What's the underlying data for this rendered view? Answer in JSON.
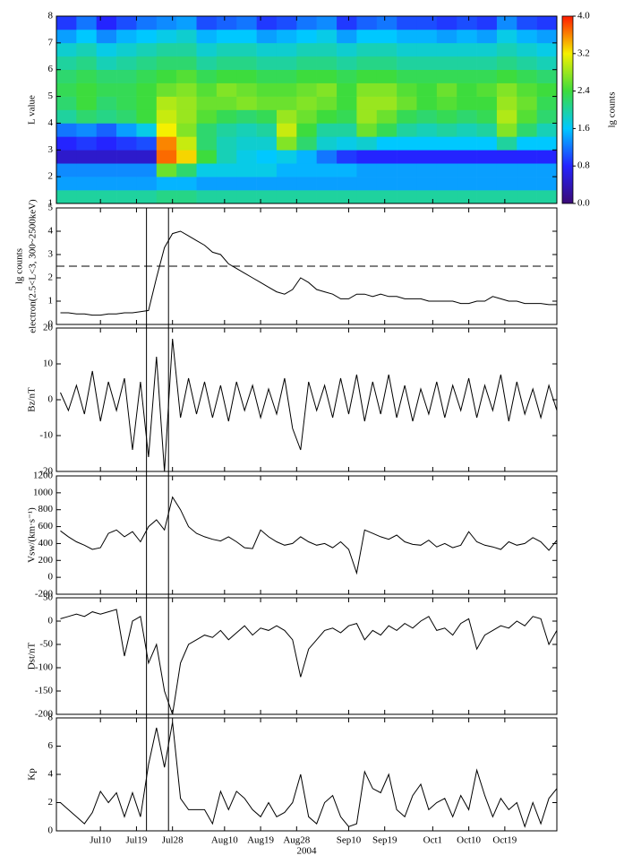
{
  "chart_data": {
    "type": "stacked-panels",
    "xlabel": "2004",
    "xlim": [
      -1,
      124
    ],
    "xticks": [
      {
        "value": 10,
        "label": "Jul10"
      },
      {
        "value": 19,
        "label": "Jul19"
      },
      {
        "value": 28,
        "label": "Jul28"
      },
      {
        "value": 41,
        "label": "Aug10"
      },
      {
        "value": 50,
        "label": "Aug19"
      },
      {
        "value": 59,
        "label": "Aug28"
      },
      {
        "value": 72,
        "label": "Sep10"
      },
      {
        "value": 81,
        "label": "Sep19"
      },
      {
        "value": 93,
        "label": "Oct1"
      },
      {
        "value": 102,
        "label": "Oct10"
      },
      {
        "value": 111,
        "label": "Oct19"
      }
    ],
    "event_lines": [
      21.5,
      27
    ],
    "x": [
      0,
      2,
      4,
      6,
      8,
      10,
      12,
      14,
      16,
      18,
      20,
      22,
      24,
      26,
      28,
      30,
      32,
      34,
      36,
      38,
      40,
      42,
      44,
      46,
      48,
      50,
      52,
      54,
      56,
      58,
      60,
      62,
      64,
      66,
      68,
      70,
      72,
      74,
      76,
      78,
      80,
      82,
      84,
      86,
      88,
      90,
      92,
      94,
      96,
      98,
      100,
      102,
      104,
      106,
      108,
      110,
      112,
      114,
      116,
      118,
      120,
      122,
      124
    ],
    "panels": [
      {
        "type": "heatmap",
        "ylabel": "L value",
        "ylim": [
          1,
          8
        ],
        "yticks": [
          1,
          2,
          3,
          4,
          5,
          6,
          7,
          8
        ],
        "colorbar_label": "lg counts",
        "clim": [
          0,
          4
        ],
        "cticks": [
          {
            "value": 0,
            "label": "0.0"
          },
          {
            "value": 0.8,
            "label": "0.8"
          },
          {
            "value": 1.6,
            "label": "1.6"
          },
          {
            "value": 2.4,
            "label": "2.4"
          },
          {
            "value": 3.2,
            "label": "3.2"
          },
          {
            "value": 4,
            "label": "4.0"
          }
        ],
        "colorscale": [
          "#3b0a75",
          "#2424ff",
          "#00c8ff",
          "#3ddc3d",
          "#f5f000",
          "#ff1a00"
        ],
        "x": [
          1.5,
          6.5,
          11.5,
          16.5,
          21.5,
          26.5,
          31.5,
          36.5,
          41.5,
          46.5,
          51.5,
          56.5,
          61.5,
          66.5,
          71.5,
          76.5,
          81.5,
          86.5,
          91.5,
          96.5,
          101.5,
          106.5,
          111.5,
          116.5,
          121.5
        ],
        "y": [
          1.25,
          1.75,
          2.25,
          2.75,
          3.25,
          3.75,
          4.25,
          4.75,
          5.25,
          5.75,
          6.25,
          6.75,
          7.25,
          7.75
        ],
        "z": [
          [
            2.0,
            2.0,
            2.0,
            2.0,
            2.0,
            2.1,
            2.1,
            2.0,
            2.0,
            2.0,
            2.0,
            2.0,
            2.0,
            2.0,
            2.0,
            2.0,
            2.0,
            2.0,
            2.0,
            2.0,
            2.0,
            2.0,
            2.0,
            2.0,
            2.0
          ],
          [
            1.4,
            1.4,
            1.4,
            1.4,
            1.4,
            1.5,
            1.5,
            1.4,
            1.4,
            1.4,
            1.4,
            1.4,
            1.4,
            1.4,
            1.4,
            1.4,
            1.4,
            1.4,
            1.4,
            1.4,
            1.4,
            1.4,
            1.4,
            1.4,
            1.4
          ],
          [
            1.3,
            1.3,
            1.3,
            1.3,
            1.3,
            2.6,
            2.2,
            1.7,
            1.7,
            1.7,
            1.7,
            1.5,
            1.5,
            1.5,
            1.5,
            1.4,
            1.4,
            1.4,
            1.4,
            1.4,
            1.4,
            1.4,
            1.4,
            1.4,
            1.4
          ],
          [
            0.5,
            0.5,
            0.5,
            0.5,
            0.5,
            3.7,
            3.3,
            2.4,
            1.9,
            1.7,
            1.6,
            1.7,
            1.5,
            1.2,
            0.9,
            0.8,
            0.8,
            0.8,
            0.8,
            0.8,
            0.8,
            0.8,
            0.8,
            0.8,
            0.8
          ],
          [
            0.8,
            0.9,
            0.8,
            0.9,
            1.0,
            3.6,
            3.0,
            2.2,
            1.9,
            1.8,
            1.8,
            2.7,
            2.2,
            1.8,
            1.7,
            1.8,
            1.6,
            1.6,
            1.6,
            1.6,
            1.6,
            1.6,
            2.0,
            1.6,
            1.6
          ],
          [
            1.2,
            1.3,
            1.1,
            1.4,
            1.7,
            3.2,
            2.7,
            2.2,
            2.0,
            1.9,
            2.0,
            3.0,
            2.4,
            2.0,
            2.0,
            2.6,
            2.3,
            2.0,
            1.9,
            2.0,
            1.9,
            2.0,
            2.7,
            2.2,
            1.9
          ],
          [
            2.0,
            2.2,
            2.1,
            2.2,
            2.4,
            3.0,
            2.8,
            2.5,
            2.3,
            2.2,
            2.3,
            2.8,
            2.6,
            2.4,
            2.3,
            2.8,
            2.6,
            2.3,
            2.2,
            2.3,
            2.2,
            2.3,
            2.9,
            2.5,
            2.2
          ],
          [
            2.2,
            2.4,
            2.2,
            2.3,
            2.4,
            2.9,
            2.8,
            2.6,
            2.6,
            2.7,
            2.6,
            2.6,
            2.7,
            2.6,
            2.4,
            2.8,
            2.8,
            2.6,
            2.4,
            2.5,
            2.4,
            2.4,
            2.8,
            2.6,
            2.3
          ],
          [
            2.3,
            2.4,
            2.3,
            2.3,
            2.4,
            2.6,
            2.7,
            2.5,
            2.7,
            2.6,
            2.5,
            2.5,
            2.6,
            2.7,
            2.4,
            2.7,
            2.7,
            2.5,
            2.4,
            2.6,
            2.4,
            2.5,
            2.7,
            2.5,
            2.4
          ],
          [
            2.2,
            2.3,
            2.2,
            2.2,
            2.3,
            2.4,
            2.5,
            2.3,
            2.4,
            2.4,
            2.3,
            2.3,
            2.4,
            2.4,
            2.3,
            2.4,
            2.4,
            2.3,
            2.3,
            2.3,
            2.3,
            2.3,
            2.4,
            2.3,
            2.2
          ],
          [
            2.0,
            2.1,
            1.9,
            2.0,
            2.1,
            2.2,
            2.2,
            2.0,
            2.1,
            2.1,
            2.0,
            2.0,
            2.1,
            2.1,
            2.0,
            2.1,
            2.1,
            2.0,
            2.0,
            2.0,
            2.0,
            2.0,
            2.1,
            2.0,
            1.9
          ],
          [
            1.8,
            1.9,
            1.7,
            1.8,
            1.9,
            2.0,
            2.0,
            1.8,
            1.9,
            1.9,
            1.8,
            1.8,
            1.9,
            1.9,
            1.8,
            1.9,
            1.9,
            1.8,
            1.8,
            1.8,
            1.8,
            1.8,
            1.9,
            1.8,
            1.7
          ],
          [
            1.4,
            1.6,
            1.3,
            1.5,
            1.6,
            1.7,
            1.8,
            1.5,
            1.6,
            1.6,
            1.4,
            1.5,
            1.6,
            1.7,
            1.4,
            1.6,
            1.6,
            1.5,
            1.5,
            1.4,
            1.5,
            1.4,
            1.7,
            1.5,
            1.4
          ],
          [
            0.9,
            1.2,
            0.8,
            1.0,
            1.2,
            1.3,
            1.4,
            1.0,
            1.1,
            1.2,
            0.9,
            1.0,
            1.2,
            1.3,
            0.9,
            1.1,
            1.2,
            1.0,
            1.0,
            0.9,
            1.0,
            0.9,
            1.3,
            1.0,
            0.9
          ]
        ]
      },
      {
        "type": "line",
        "ylabel": [
          "lg counts",
          "electron(2.5<L<3, 300~2500keV)"
        ],
        "ylim": [
          0,
          5
        ],
        "yticks": [
          0,
          1,
          2,
          3,
          4,
          5
        ],
        "hline": 2.5,
        "color": "#000000",
        "values": [
          0.5,
          0.5,
          0.45,
          0.45,
          0.4,
          0.4,
          0.45,
          0.45,
          0.5,
          0.5,
          0.55,
          0.6,
          2.0,
          3.3,
          3.9,
          4.0,
          3.8,
          3.6,
          3.4,
          3.1,
          3.0,
          2.6,
          2.4,
          2.2,
          2.0,
          1.8,
          1.6,
          1.4,
          1.3,
          1.5,
          2.0,
          1.8,
          1.5,
          1.4,
          1.3,
          1.1,
          1.1,
          1.3,
          1.3,
          1.2,
          1.3,
          1.2,
          1.2,
          1.1,
          1.1,
          1.1,
          1.0,
          1.0,
          1.0,
          1.0,
          0.9,
          0.9,
          1.0,
          1.0,
          1.2,
          1.1,
          1.0,
          1.0,
          0.9,
          0.9,
          0.9,
          0.85,
          0.85
        ]
      },
      {
        "type": "line",
        "ylabel": "Bz/nT",
        "ylim": [
          -20,
          20
        ],
        "yticks": [
          -20,
          -10,
          0,
          10,
          20
        ],
        "color": "#000000",
        "values": [
          2,
          -3,
          4,
          -4,
          8,
          -6,
          5,
          -3,
          6,
          -14,
          5,
          -16,
          12,
          -20,
          17,
          -5,
          6,
          -4,
          5,
          -5,
          4,
          -6,
          5,
          -3,
          4,
          -5,
          3,
          -4,
          6,
          -8,
          -14,
          5,
          -3,
          4,
          -5,
          6,
          -4,
          7,
          -6,
          5,
          -4,
          7,
          -5,
          4,
          -6,
          3,
          -4,
          5,
          -5,
          4,
          -3,
          6,
          -5,
          4,
          -3,
          7,
          -6,
          5,
          -4,
          3,
          -5,
          4,
          -3
        ]
      },
      {
        "type": "line",
        "ylabel": "Vsw/(km·s⁻¹)",
        "ylim": [
          -200,
          1200
        ],
        "yticks": [
          -200,
          0,
          200,
          400,
          600,
          800,
          1000,
          1200
        ],
        "color": "#000000",
        "values": [
          550,
          480,
          420,
          380,
          330,
          350,
          520,
          560,
          480,
          540,
          420,
          600,
          680,
          560,
          950,
          800,
          600,
          520,
          480,
          450,
          430,
          480,
          420,
          350,
          340,
          560,
          480,
          420,
          380,
          400,
          480,
          420,
          380,
          400,
          350,
          420,
          330,
          50,
          560,
          520,
          480,
          450,
          500,
          420,
          390,
          380,
          440,
          360,
          400,
          350,
          380,
          540,
          420,
          380,
          360,
          330,
          420,
          380,
          400,
          470,
          420,
          320,
          440
        ]
      },
      {
        "type": "line",
        "ylabel": "Dst/nT",
        "ylim": [
          -200,
          50
        ],
        "yticks": [
          -200,
          -150,
          -100,
          -50,
          0,
          50
        ],
        "color": "#000000",
        "values": [
          5,
          10,
          15,
          10,
          20,
          15,
          20,
          25,
          -75,
          0,
          10,
          -90,
          -50,
          -150,
          -200,
          -90,
          -50,
          -40,
          -30,
          -35,
          -20,
          -40,
          -25,
          -10,
          -30,
          -15,
          -20,
          -10,
          -20,
          -40,
          -120,
          -60,
          -40,
          -20,
          -15,
          -25,
          -10,
          -5,
          -40,
          -20,
          -30,
          -10,
          -20,
          -5,
          -15,
          0,
          10,
          -20,
          -15,
          -30,
          -5,
          5,
          -60,
          -30,
          -20,
          -10,
          -15,
          0,
          -10,
          10,
          5,
          -50,
          -20
        ]
      },
      {
        "type": "line",
        "ylabel": "Kp",
        "ylim": [
          0,
          8
        ],
        "yticks": [
          0,
          2,
          4,
          6,
          8
        ],
        "color": "#000000",
        "values": [
          2,
          1.5,
          1,
          0.5,
          1.3,
          2.8,
          2,
          2.7,
          1,
          2.7,
          1,
          4.7,
          7.3,
          4.5,
          7.7,
          2.3,
          1.5,
          1.5,
          1.5,
          0.5,
          2.8,
          1.5,
          2.8,
          2.3,
          1.5,
          1,
          2,
          1,
          1.3,
          2,
          4,
          1,
          0.5,
          2,
          2.5,
          1,
          0.3,
          0.5,
          4.2,
          3,
          2.7,
          4,
          1.5,
          1,
          2.5,
          3.3,
          1.5,
          2,
          2.3,
          1,
          2.5,
          1.5,
          4.3,
          2.5,
          1,
          2.3,
          1.5,
          2,
          0.3,
          2,
          0.5,
          2.3,
          3
        ]
      }
    ]
  }
}
